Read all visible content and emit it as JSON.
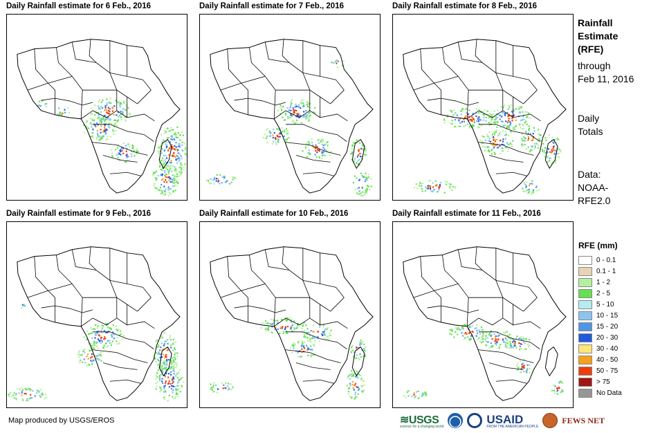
{
  "panels": [
    {
      "title": "Daily Rainfall estimate for 6 Feb., 2016",
      "rain_pattern": 0
    },
    {
      "title": "Daily Rainfall estimate for 7 Feb., 2016",
      "rain_pattern": 1
    },
    {
      "title": "Daily Rainfall estimate for 8 Feb., 2016",
      "rain_pattern": 2
    },
    {
      "title": "Daily Rainfall estimate for 9 Feb., 2016",
      "rain_pattern": 3
    },
    {
      "title": "Daily Rainfall estimate for 10 Feb., 2016",
      "rain_pattern": 4
    },
    {
      "title": "Daily Rainfall estimate for 11 Feb., 2016",
      "rain_pattern": 5
    }
  ],
  "side": {
    "title_line1": "Rainfall",
    "title_line2": "Estimate",
    "title_line3": "(RFE)",
    "through_line1": "through",
    "through_line2": "Feb 11, 2016",
    "totals_line1": "Daily",
    "totals_line2": "Totals",
    "data_line1": "Data:",
    "data_line2": "NOAA-",
    "data_line3": "RFE2.0"
  },
  "legend": {
    "title": "RFE (mm)",
    "items": [
      {
        "label": "0 - 0.1",
        "color": "#ffffff"
      },
      {
        "label": "0.1 - 1",
        "color": "#e8d4b4"
      },
      {
        "label": "1 - 2",
        "color": "#b4f0a0"
      },
      {
        "label": "2 - 5",
        "color": "#64e052"
      },
      {
        "label": "5 - 10",
        "color": "#b4ecf4"
      },
      {
        "label": "10 - 15",
        "color": "#8cc4f0"
      },
      {
        "label": "15 - 20",
        "color": "#5096e6"
      },
      {
        "label": "20 - 30",
        "color": "#1e5adc"
      },
      {
        "label": "30 - 40",
        "color": "#ffe678"
      },
      {
        "label": "40 - 50",
        "color": "#f5a01e"
      },
      {
        "label": "50 - 75",
        "color": "#f03c0a"
      },
      {
        "label": "> 75",
        "color": "#a01414"
      },
      {
        "label": "No Data",
        "color": "#969696"
      }
    ]
  },
  "credit": "Map produced by USGS/EROS",
  "logos": {
    "usgs": "≋USGS",
    "usgs_sub": "science for a changing world",
    "usaid": "USAID",
    "usaid_sub": "FROM THE AMERICAN PEOPLE",
    "fews": "FEWS NET"
  }
}
